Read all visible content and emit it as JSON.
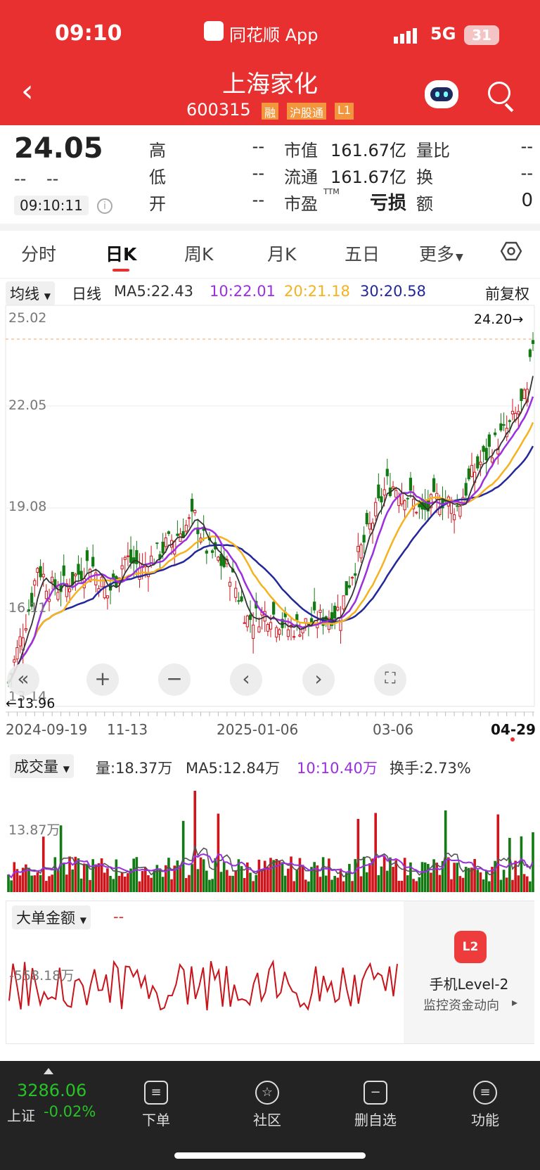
{
  "status_bar": {
    "time": "09:10",
    "app_name": "同花顺 App",
    "network": "5G",
    "battery": "31"
  },
  "header": {
    "title": "上海家化",
    "code": "600315",
    "tags": [
      "融",
      "沪股通",
      "L1"
    ]
  },
  "summary": {
    "price": "24.05",
    "change_placeholder_1": "--",
    "change_placeholder_2": "--",
    "time": "09:10:11",
    "rows": [
      {
        "l1": "高",
        "v1": "--",
        "l2": "市值",
        "v2": "161.67亿",
        "l3": "量比",
        "v3": "--"
      },
      {
        "l1": "低",
        "v1": "--",
        "l2": "流通",
        "v2": "161.67亿",
        "l3": "换",
        "v3": "--"
      },
      {
        "l1": "开",
        "v1": "--",
        "l2": "市盈",
        "v2": "亏损",
        "l3": "额",
        "v3": "0"
      }
    ],
    "ttm": "TTM"
  },
  "tabs": {
    "items": [
      "分时",
      "日K",
      "周K",
      "月K",
      "五日",
      "更多"
    ],
    "active": "日K"
  },
  "ma_legend": {
    "selector": "均线",
    "period": "日线",
    "ma5": "MA5:22.43",
    "ma10": "10:22.01",
    "ma20": "20:21.18",
    "ma30": "30:20.58",
    "adjust": "前复权"
  },
  "colors": {
    "red": "#e93030",
    "up": "#d0141b",
    "down": "#127a12",
    "ma5": "#333333",
    "ma10": "#9b2fe0",
    "ma20": "#f5b21d",
    "ma30": "#23279a"
  },
  "kline": {
    "y_ticks": [
      "25.02",
      "22.05",
      "19.08",
      "16.11",
      "13.14"
    ],
    "high_marker": "24.20→",
    "low_marker": "←13.96",
    "x_ticks": [
      "2024-09-19",
      "11-13",
      "2025-01-06",
      "03-06",
      "04-29"
    ]
  },
  "volume": {
    "selector": "成交量",
    "vol": "量:18.37万",
    "ma5": "MA5:12.84万",
    "ma10": "10:10.40万",
    "turnover": "换手:2.73%",
    "y_label": "13.87万"
  },
  "big_order": {
    "selector": "大单金额",
    "value": "--",
    "y_label": "-558.18万",
    "promo_title": "手机Level-2",
    "promo_sub": "监控资金动向",
    "promo_badge": "L2"
  },
  "bottom_nav": {
    "index_value": "3286.06",
    "index_name": "上证",
    "index_change": "-0.02%",
    "items": [
      "下单",
      "社区",
      "删自选",
      "功能"
    ]
  },
  "chart_data": {
    "type": "candlestick",
    "title": "上海家化 日K",
    "ylim": [
      13.14,
      25.02
    ],
    "ma_latest": {
      "MA5": 22.43,
      "MA10": 22.01,
      "MA20": 21.18,
      "MA30": 20.58
    },
    "x_range": [
      "2024-09-19",
      "04-29"
    ],
    "high": 24.2,
    "low": 13.96
  }
}
